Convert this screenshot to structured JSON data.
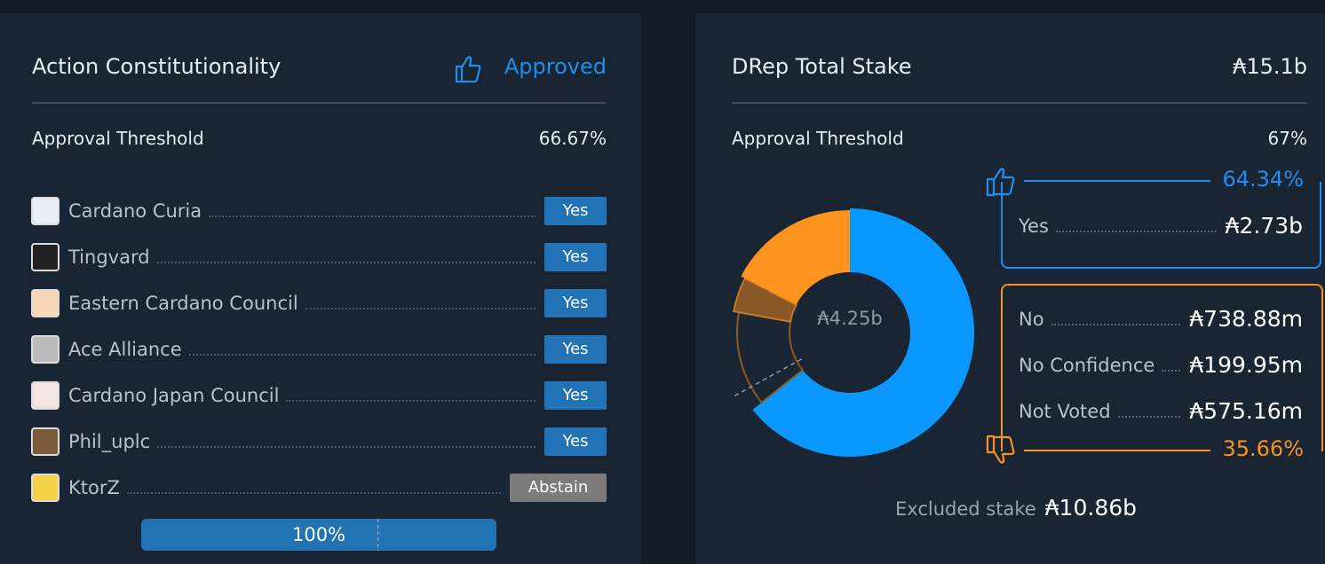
{
  "left": {
    "title": "Action Constitutionality",
    "status": "Approved",
    "threshold_label": "Approval Threshold",
    "threshold": {
      "value": 66.67,
      "label": "66.67%"
    },
    "members": [
      {
        "name": "Cardano Curia",
        "vote": "Yes"
      },
      {
        "name": "Tingvard",
        "vote": "Yes"
      },
      {
        "name": "Eastern Cardano Council",
        "vote": "Yes"
      },
      {
        "name": "Ace Alliance",
        "vote": "Yes"
      },
      {
        "name": "Cardano Japan Council",
        "vote": "Yes"
      },
      {
        "name": "Phil_uplc",
        "vote": "Yes"
      },
      {
        "name": "KtorZ",
        "vote": "Abstain"
      }
    ],
    "progress": {
      "value": 100,
      "label": "100%"
    }
  },
  "right": {
    "title": "DRep Total Stake",
    "total_stake": "₳15.1b",
    "threshold_label": "Approval Threshold",
    "threshold": {
      "value": 67,
      "label": "67%"
    },
    "donut_center": "₳4.25b",
    "yes_percent": "64.34%",
    "no_percent": "35.66%",
    "votes": [
      {
        "label": "Yes",
        "value": 2.73,
        "value_label": "₳2.73b",
        "color": "#0a98ff"
      },
      {
        "label": "No",
        "value": 0.73888,
        "value_label": "₳738.88m",
        "color": "#ff931f"
      },
      {
        "label": "No Confidence",
        "value": 0.19995,
        "value_label": "₳199.95m",
        "color": "#8a5726"
      },
      {
        "label": "Not Voted",
        "value": 0.57516,
        "value_label": "₳575.16m",
        "color": "#1b2635"
      }
    ],
    "excluded_label": "Excluded stake",
    "excluded_value": "₳10.86b"
  }
}
